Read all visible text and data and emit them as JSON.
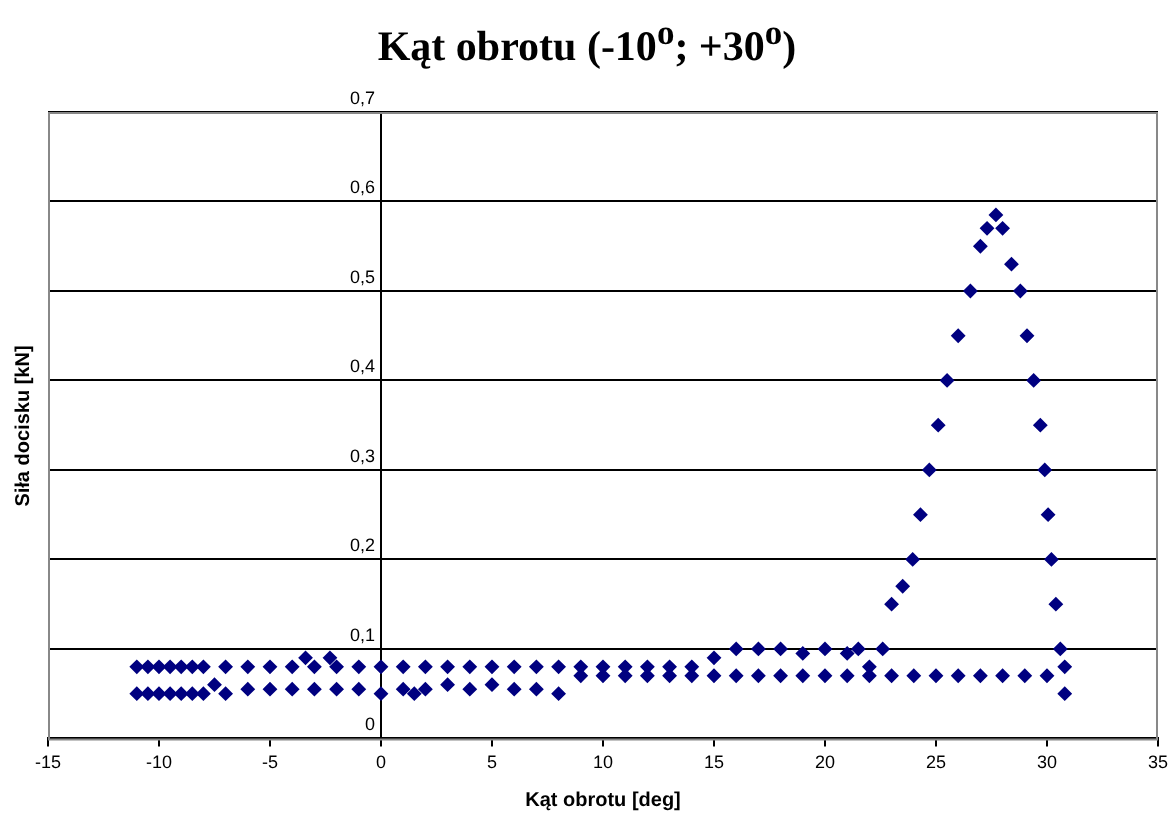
{
  "chart_data": {
    "type": "scatter",
    "title": "Kąt obrotu (-10$^{o}$; +30$^{o}$)",
    "xlabel": "Kąt obrotu [deg]",
    "ylabel": "Siła docisku [kN]",
    "x": [
      -11,
      -11,
      -10.5,
      -10.5,
      -10,
      -10,
      -9.5,
      -9.5,
      -9,
      -9,
      -8.5,
      -8.5,
      -8,
      -8,
      -7.5,
      -7,
      -7,
      -6,
      -6,
      -5,
      -5,
      -4,
      -4,
      -3.4,
      -3,
      -3,
      -2.3,
      -2,
      -2,
      -1,
      -1,
      0,
      0,
      1,
      1,
      1.5,
      2,
      2,
      3,
      3,
      4,
      4,
      5,
      5,
      6,
      6,
      7,
      7,
      8,
      8,
      9,
      9,
      10,
      10,
      11,
      11,
      12,
      12,
      13,
      13,
      14,
      14,
      15,
      15,
      16,
      16,
      17,
      17,
      18,
      18,
      19,
      19,
      20,
      20,
      21,
      21,
      21.5,
      22,
      22,
      22.6,
      23,
      23.5,
      23.95,
      24.3,
      24.7,
      25.1,
      25.5,
      26,
      26.55,
      27,
      27.3,
      27.7,
      28,
      28.4,
      28.8,
      29.1,
      29.4,
      29.7,
      29.9,
      30.05,
      30.2,
      30.4,
      30.6,
      30.8,
      30.8,
      30,
      29,
      28,
      27,
      26,
      25,
      24,
      23
    ],
    "values": [
      0.05,
      0.08,
      0.05,
      0.08,
      0.05,
      0.08,
      0.05,
      0.08,
      0.05,
      0.08,
      0.05,
      0.08,
      0.05,
      0.08,
      0.06,
      0.05,
      0.08,
      0.055,
      0.08,
      0.055,
      0.08,
      0.055,
      0.08,
      0.09,
      0.055,
      0.08,
      0.09,
      0.055,
      0.08,
      0.055,
      0.08,
      0.05,
      0.08,
      0.055,
      0.08,
      0.05,
      0.055,
      0.08,
      0.06,
      0.08,
      0.055,
      0.08,
      0.06,
      0.08,
      0.055,
      0.08,
      0.055,
      0.08,
      0.05,
      0.08,
      0.07,
      0.08,
      0.07,
      0.08,
      0.07,
      0.08,
      0.07,
      0.08,
      0.07,
      0.08,
      0.07,
      0.08,
      0.07,
      0.09,
      0.07,
      0.1,
      0.07,
      0.1,
      0.07,
      0.1,
      0.07,
      0.095,
      0.07,
      0.1,
      0.07,
      0.095,
      0.1,
      0.07,
      0.08,
      0.1,
      0.15,
      0.17,
      0.2,
      0.25,
      0.3,
      0.35,
      0.4,
      0.45,
      0.5,
      0.55,
      0.57,
      0.585,
      0.57,
      0.53,
      0.5,
      0.45,
      0.4,
      0.35,
      0.3,
      0.25,
      0.2,
      0.15,
      0.1,
      0.08,
      0.05,
      0.07,
      0.07,
      0.07,
      0.07,
      0.07,
      0.07,
      0.07,
      0.07
    ],
    "color": "#000080",
    "marker": "diamond",
    "grid": "y",
    "legend": false,
    "xlim": [
      -15,
      35
    ],
    "xticks": [
      -15,
      -10,
      -5,
      0,
      5,
      10,
      15,
      20,
      25,
      30,
      35
    ],
    "ylim": [
      0,
      0.7
    ],
    "yticks": [
      0,
      {
        "value": 0.1,
        "label": "0,1"
      },
      {
        "value": 0.2,
        "label": "0,2"
      },
      {
        "value": 0.3,
        "label": "0,3"
      },
      {
        "value": 0.4,
        "label": "0,4"
      },
      {
        "value": 0.5,
        "label": "0,5"
      },
      {
        "value": 0.6,
        "label": "0,6"
      },
      {
        "value": 0.7,
        "label": "0,7"
      }
    ]
  }
}
